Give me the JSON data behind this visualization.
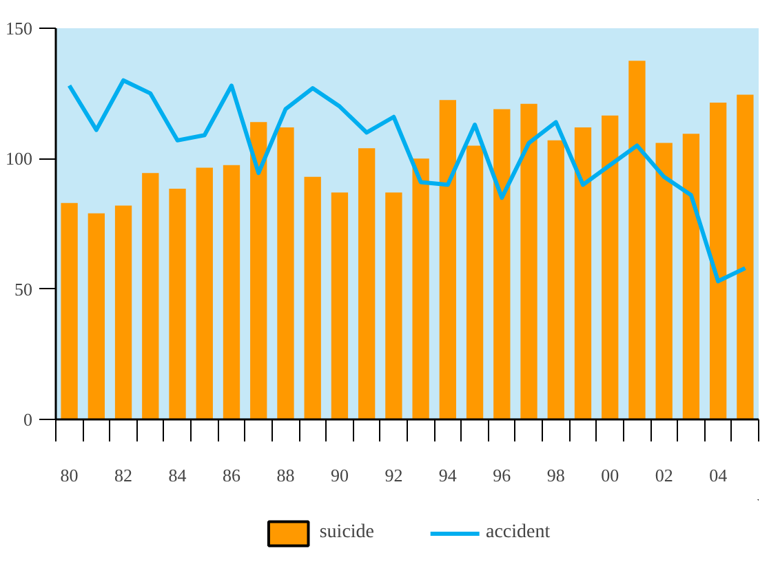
{
  "chart_data": {
    "type": "bar",
    "categories": [
      "80",
      null,
      "82",
      null,
      "84",
      null,
      "86",
      null,
      "88",
      null,
      "90",
      null,
      "92",
      null,
      "94",
      null,
      "96",
      null,
      "98",
      null,
      "00",
      null,
      "02",
      null,
      "04",
      null
    ],
    "series": [
      {
        "name": "suicide",
        "color": "#ff9900",
        "values": [
          83,
          79,
          82,
          94.5,
          88.5,
          96.5,
          97.5,
          114,
          112,
          93,
          87,
          104,
          87,
          100,
          122.5,
          105,
          119,
          121,
          107,
          112,
          116.5,
          137.5,
          106,
          109.5,
          121.5,
          124.5
        ]
      },
      {
        "name": "accident",
        "type": "line",
        "color": "#00aeef",
        "values": [
          128,
          111,
          130,
          125,
          107,
          109,
          128,
          94.5,
          119,
          127,
          120,
          110,
          116,
          91,
          90,
          113,
          85,
          106,
          114,
          90,
          97.5,
          105,
          93,
          86,
          53,
          58
        ]
      }
    ],
    "ylim": [
      0,
      150
    ],
    "yticks": [
      0,
      50,
      100,
      150
    ],
    "grid": false,
    "legend": "bottom"
  }
}
